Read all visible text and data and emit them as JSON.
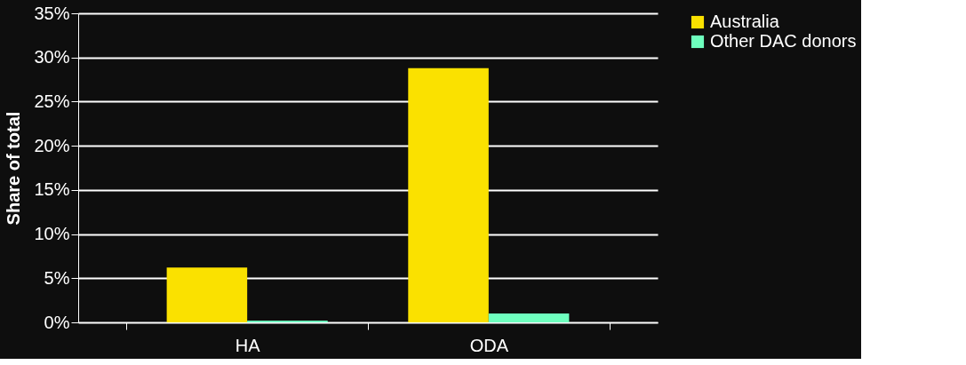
{
  "chart_data": {
    "type": "bar",
    "ylabel": "Share of total",
    "categories": [
      "HA",
      "ODA"
    ],
    "series": [
      {
        "name": "Australia",
        "color": "#fae100",
        "values": [
          6.2,
          28.8
        ]
      },
      {
        "name": "Other DAC donors",
        "color": "#6effbe",
        "values": [
          0.2,
          1.0
        ]
      }
    ],
    "ylim": [
      0,
      35
    ],
    "yticks": [
      {
        "value": 0,
        "label": "0%"
      },
      {
        "value": 5,
        "label": "5%"
      },
      {
        "value": 10,
        "label": "10%"
      },
      {
        "value": 15,
        "label": "15%"
      },
      {
        "value": 20,
        "label": "20%"
      },
      {
        "value": 25,
        "label": "25%"
      },
      {
        "value": 30,
        "label": "30%"
      },
      {
        "value": 35,
        "label": "35%"
      }
    ],
    "grid": "y",
    "legend": "right"
  }
}
